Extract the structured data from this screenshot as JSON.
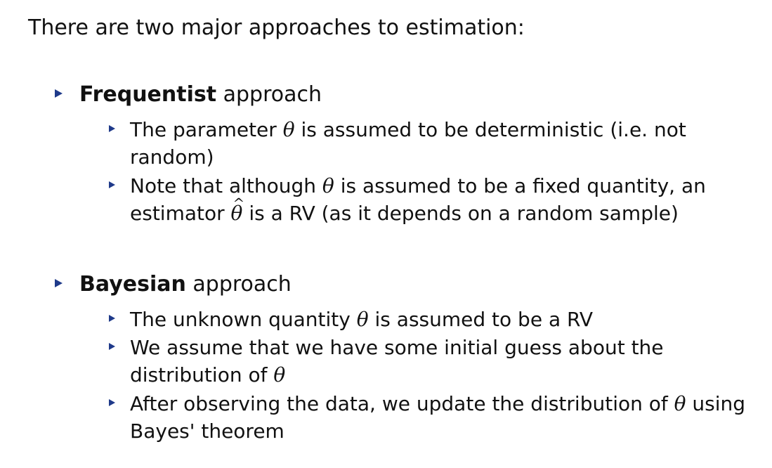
{
  "intro": "There are two major approaches to estimation:",
  "frequentist": {
    "heading_bold": "Frequentist",
    "heading_rest": "approach",
    "items": [
      {
        "line1_a": "The parameter",
        "line1_sym": "θ",
        "line1_b": "is assumed to be deterministic (i.e. not",
        "line2": "random)"
      },
      {
        "line1_a": "Note that although",
        "line1_sym": "θ",
        "line1_b": "is assumed to be a fixed quantity, an",
        "line2_a": "estimator",
        "line2_sym": "θ",
        "line2_b": "is a RV (as it depends on a random sample)"
      }
    ]
  },
  "bayesian": {
    "heading_bold": "Bayesian",
    "heading_rest": "approach",
    "items": [
      {
        "line1_a": "The unknown quantity",
        "line1_sym": "θ",
        "line1_b": "is assumed to be a RV"
      },
      {
        "line1": "We assume that we have some initial guess about the",
        "line2_a": "distribution of",
        "line2_sym": "θ"
      },
      {
        "line1_a": "After observing the data, we update the distribution of",
        "line1_sym": "θ",
        "line1_b": "using",
        "line2": "Bayes' theorem"
      }
    ]
  }
}
